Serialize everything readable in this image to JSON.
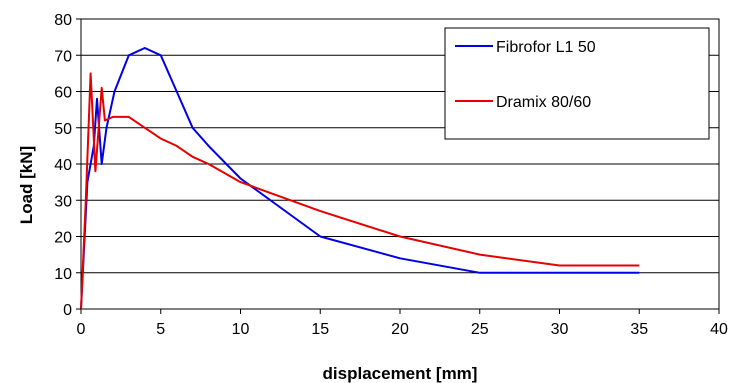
{
  "chart_data": {
    "type": "line",
    "xlabel": "displacement [mm]",
    "ylabel": "Load  [kN]",
    "xlim": [
      0,
      40
    ],
    "ylim": [
      0,
      80
    ],
    "xticks": [
      "0",
      "5",
      "10",
      "15",
      "20",
      "25",
      "30",
      "35",
      "40"
    ],
    "yticks": [
      "0",
      "10",
      "20",
      "30",
      "40",
      "50",
      "60",
      "70",
      "80"
    ],
    "grid": "horizontal",
    "legend_position": "top-right",
    "series": [
      {
        "name": "Fibrofor L1 50",
        "color": "#0000e6",
        "x": [
          0,
          0.4,
          0.8,
          1.0,
          1.3,
          1.6,
          2.1,
          3.0,
          4.0,
          5.0,
          6.0,
          7.0,
          8.0,
          10.0,
          15.0,
          20.0,
          25.0,
          30.0,
          35.0
        ],
        "y": [
          0,
          35,
          45,
          58,
          40,
          50,
          60,
          70,
          72,
          70,
          60,
          50,
          45,
          36,
          20,
          14,
          10,
          10,
          10
        ]
      },
      {
        "name": "Dramix 80/60",
        "color": "#e60000",
        "x": [
          0,
          0.3,
          0.6,
          0.9,
          1.3,
          1.5,
          2.0,
          3.0,
          4.0,
          5.0,
          6.0,
          7.0,
          8.0,
          10.0,
          15.0,
          20.0,
          25.0,
          30.0,
          35.0
        ],
        "y": [
          0,
          30,
          65,
          38,
          61,
          52,
          53,
          53,
          50,
          47,
          45,
          42,
          40,
          35,
          27,
          20,
          15,
          12,
          12
        ]
      }
    ]
  }
}
